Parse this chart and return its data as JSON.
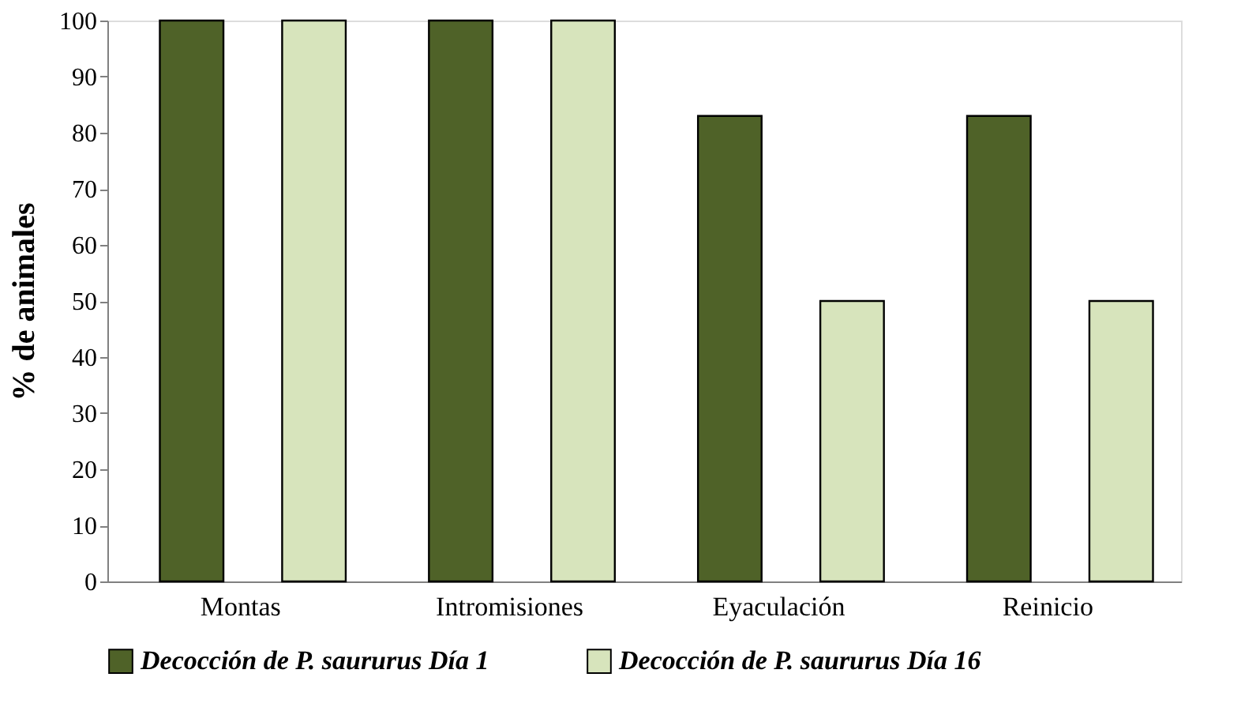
{
  "chart_data": {
    "type": "bar",
    "ylabel": "% de animales",
    "categories": [
      "Montas",
      "Intromisiones",
      "Eyaculación",
      "Reinicio"
    ],
    "series": [
      {
        "name": "Decocción de P. saururus Día 1",
        "color": "#4f6228",
        "values": [
          100,
          100,
          83,
          83
        ]
      },
      {
        "name": "Decocción de P. saururus Día 16",
        "color": "#d7e4bc",
        "values": [
          100,
          100,
          50,
          50
        ]
      }
    ],
    "ylim": [
      0,
      100
    ],
    "yticks": [
      0,
      10,
      20,
      30,
      40,
      50,
      60,
      70,
      80,
      90,
      100
    ],
    "grid": false,
    "legend": "bottom"
  }
}
